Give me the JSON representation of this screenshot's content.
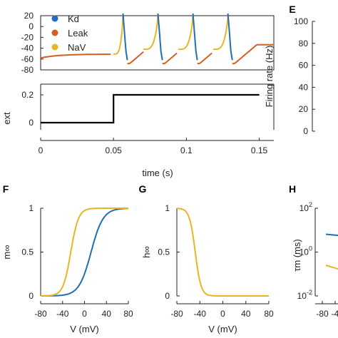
{
  "chart_data": [
    {
      "panel": "",
      "type": "line",
      "ylabel": "",
      "ylim": [
        -80,
        20
      ],
      "yticks": [
        "20",
        "0",
        "-20",
        "-40",
        "-60",
        "-80"
      ],
      "xlim": [
        0,
        0.16
      ],
      "legend_placement": "top-left",
      "series": [
        {
          "name": "Kd",
          "color": "#1f6eb6"
        },
        {
          "name": "Leak",
          "color": "#d35f22"
        },
        {
          "name": "NaV",
          "color": "#e8b527"
        }
      ],
      "spike_times": [
        0.0565,
        0.0805,
        0.1045,
        0.1285
      ],
      "x": [
        0,
        0.01,
        0.02,
        0.03,
        0.04,
        0.05,
        0.052,
        0.054,
        0.056,
        0.0565,
        0.0575,
        0.059,
        0.063,
        0.068,
        0.074,
        0.08
      ],
      "y": [
        -58,
        -55,
        -53,
        -52,
        -51.5,
        -51,
        -45,
        -38,
        -20,
        25,
        -20,
        -55,
        -68,
        -60,
        -50,
        -40
      ]
    },
    {
      "panel": "",
      "type": "line",
      "ylabel": "ext",
      "ylim": [
        0,
        0.2
      ],
      "yticks": [
        "0.2",
        "0"
      ],
      "xlabel": "time (s)",
      "xlim": [
        0,
        0.16
      ],
      "xticks": [
        "0",
        "0.05",
        "0.1",
        "0.15"
      ],
      "series": [
        {
          "color": "#000000",
          "x": [
            0,
            0.05,
            0.05,
            0.15
          ],
          "y": [
            0,
            0,
            0.2,
            0.2
          ]
        }
      ]
    },
    {
      "panel": "E",
      "type": "line",
      "ylabel": "Firing rate (Hz)",
      "ylim": [
        0,
        100
      ],
      "yticks": [
        "100",
        "80",
        "60",
        "40",
        "20",
        "0"
      ]
    },
    {
      "panel": "F",
      "type": "line",
      "ylabel": "m∞",
      "xlabel": "V (mV)",
      "xlim": [
        -80,
        80
      ],
      "ylim": [
        0,
        1
      ],
      "xticks": [
        "-80",
        "-40",
        "0",
        "40",
        "80"
      ],
      "yticks": [
        "1",
        "0.5",
        "0"
      ],
      "series": [
        {
          "name": "Kd",
          "color": "#1f6eb6",
          "v_half": 12,
          "slope": 11
        },
        {
          "name": "NaV",
          "color": "#e8b527",
          "v_half": -25,
          "slope": 7
        }
      ]
    },
    {
      "panel": "G",
      "type": "line",
      "ylabel": "h∞",
      "xlabel": "V (mV)",
      "xlim": [
        -80,
        80
      ],
      "ylim": [
        0,
        1
      ],
      "xticks": [
        "-80",
        "-40",
        "0",
        "40",
        "80"
      ],
      "yticks": [
        "1",
        "0.5",
        "0"
      ],
      "series": [
        {
          "name": "NaV",
          "color": "#e8b527",
          "v_half": -48,
          "slope": -5
        }
      ]
    },
    {
      "panel": "H",
      "type": "line",
      "ylabel": "τm (ms)",
      "yscale": "log",
      "ylim": [
        0.01,
        100
      ],
      "yticks": [
        "10^2",
        "10^0",
        "10^-2"
      ],
      "xticks": [
        "-80",
        "-4"
      ],
      "series": [
        {
          "name": "Kd",
          "color": "#1f6eb6",
          "x": [
            -82,
            -70,
            -60
          ],
          "y": [
            6.5,
            5.5,
            4.5
          ]
        },
        {
          "name": "NaV",
          "color": "#e8b527",
          "x": [
            -82,
            -70,
            -60
          ],
          "y": [
            0.25,
            0.15,
            0.09
          ]
        }
      ]
    }
  ]
}
